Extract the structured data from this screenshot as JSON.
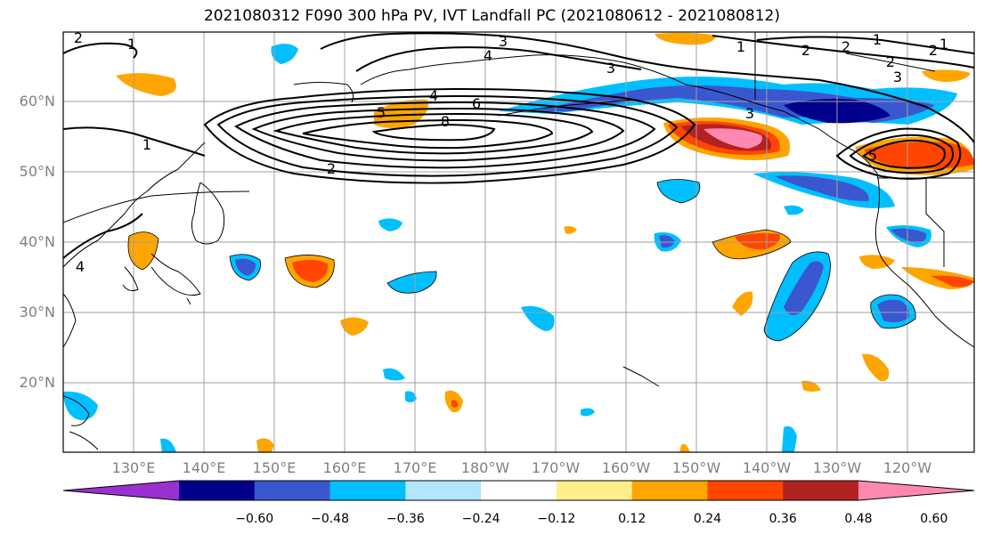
{
  "title": "2021080312 F090 300 hPa PV, IVT Landfall PC (2021080612 - 2021080812)",
  "lat_labels": [
    "60°N",
    "50°N",
    "40°N",
    "30°N",
    "20°N"
  ],
  "lon_labels": [
    "130°E",
    "140°E",
    "150°E",
    "160°E",
    "170°E",
    "180°W",
    "170°W",
    "160°W",
    "150°W",
    "140°W",
    "130°W",
    "120°W"
  ],
  "contour_labels": [
    "2",
    "1",
    "3",
    "4",
    "2",
    "1",
    "2",
    "3",
    "6",
    "8",
    "5",
    "1",
    "2",
    "4",
    "3",
    "1",
    "1",
    "3",
    "2",
    "5",
    "4",
    "2"
  ],
  "colorbar": {
    "colors": [
      "#9b30d0",
      "#00008b",
      "#3a57d0",
      "#00bfff",
      "#b3e5fc",
      "#ffffff",
      "#ffee8a",
      "#ffa500",
      "#ff4500",
      "#b22222",
      "#ff88b0"
    ],
    "tick_labels": [
      "−0.60",
      "−0.48",
      "−0.36",
      "−0.24",
      "−0.12",
      "0.12",
      "0.24",
      "0.36",
      "0.48",
      "0.60"
    ]
  }
}
